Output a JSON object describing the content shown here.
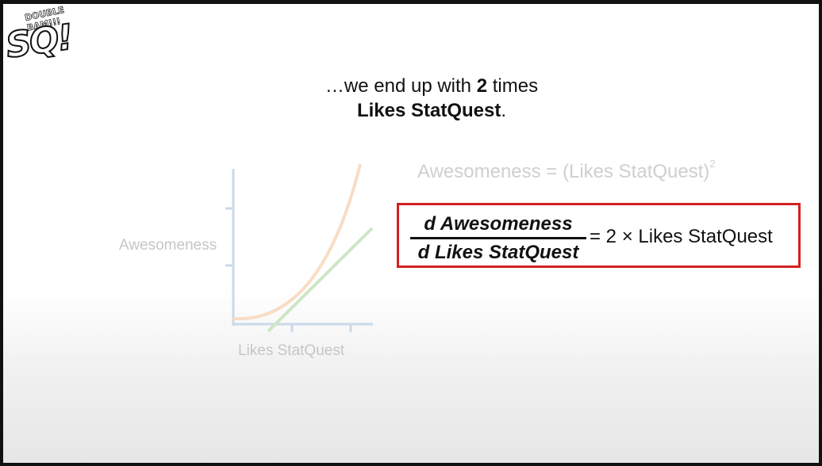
{
  "logo": {
    "main": "SQ!",
    "small": "DOUBLE BAM!!!"
  },
  "headline": {
    "line1_pre": "…we end up with ",
    "line1_bold": "2",
    "line1_post": " times",
    "line2_bold": "Likes StatQuest",
    "line2_post": "."
  },
  "plot": {
    "y_label": "Awesomeness",
    "x_label": "Likes StatQuest",
    "colors": {
      "axis": "#c9d9ea",
      "curve": "#f9dcc4",
      "tangent": "#cde6c4"
    }
  },
  "equation": {
    "lhs": "Awesomeness = (Likes StatQuest)",
    "exponent": "2"
  },
  "derivative": {
    "numerator": "d Awesomeness",
    "denominator": "d Likes StatQuest",
    "rhs": "= 2 × Likes StatQuest",
    "border_color": "#d42020"
  }
}
